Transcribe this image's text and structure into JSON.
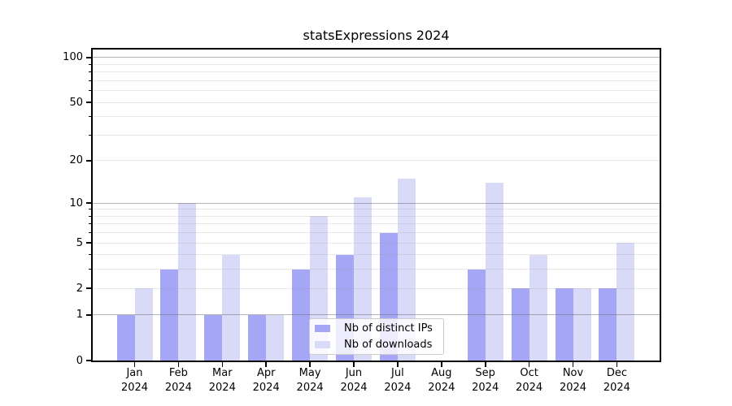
{
  "chart_data": {
    "type": "bar",
    "title": "statsExpressions 2024",
    "categories": [
      "Jan",
      "Feb",
      "Mar",
      "Apr",
      "May",
      "Jun",
      "Jul",
      "Aug",
      "Sep",
      "Oct",
      "Nov",
      "Dec"
    ],
    "x_year_suffix": "2024",
    "series": [
      {
        "name": "Nb of distinct IPs",
        "color": "#a6a6f6",
        "values": [
          1,
          3,
          1,
          1,
          3,
          4,
          6,
          0,
          3,
          2,
          2,
          2
        ]
      },
      {
        "name": "Nb of downloads",
        "color": "#d9d9f8",
        "values": [
          2,
          10,
          4,
          1,
          8,
          11,
          15,
          0,
          14,
          4,
          2,
          5
        ]
      }
    ],
    "yscale": "log1p",
    "ylim": [
      0,
      113
    ],
    "y_ticks": [
      0,
      1,
      2,
      5,
      10,
      20,
      50,
      100
    ],
    "y_major_gridlines": [
      1,
      10,
      100
    ],
    "y_minor_gridlines": [
      2,
      3,
      4,
      5,
      6,
      7,
      8,
      9,
      20,
      30,
      40,
      50,
      60,
      70,
      80,
      90
    ],
    "grid": true,
    "legend_position": "lower center"
  }
}
